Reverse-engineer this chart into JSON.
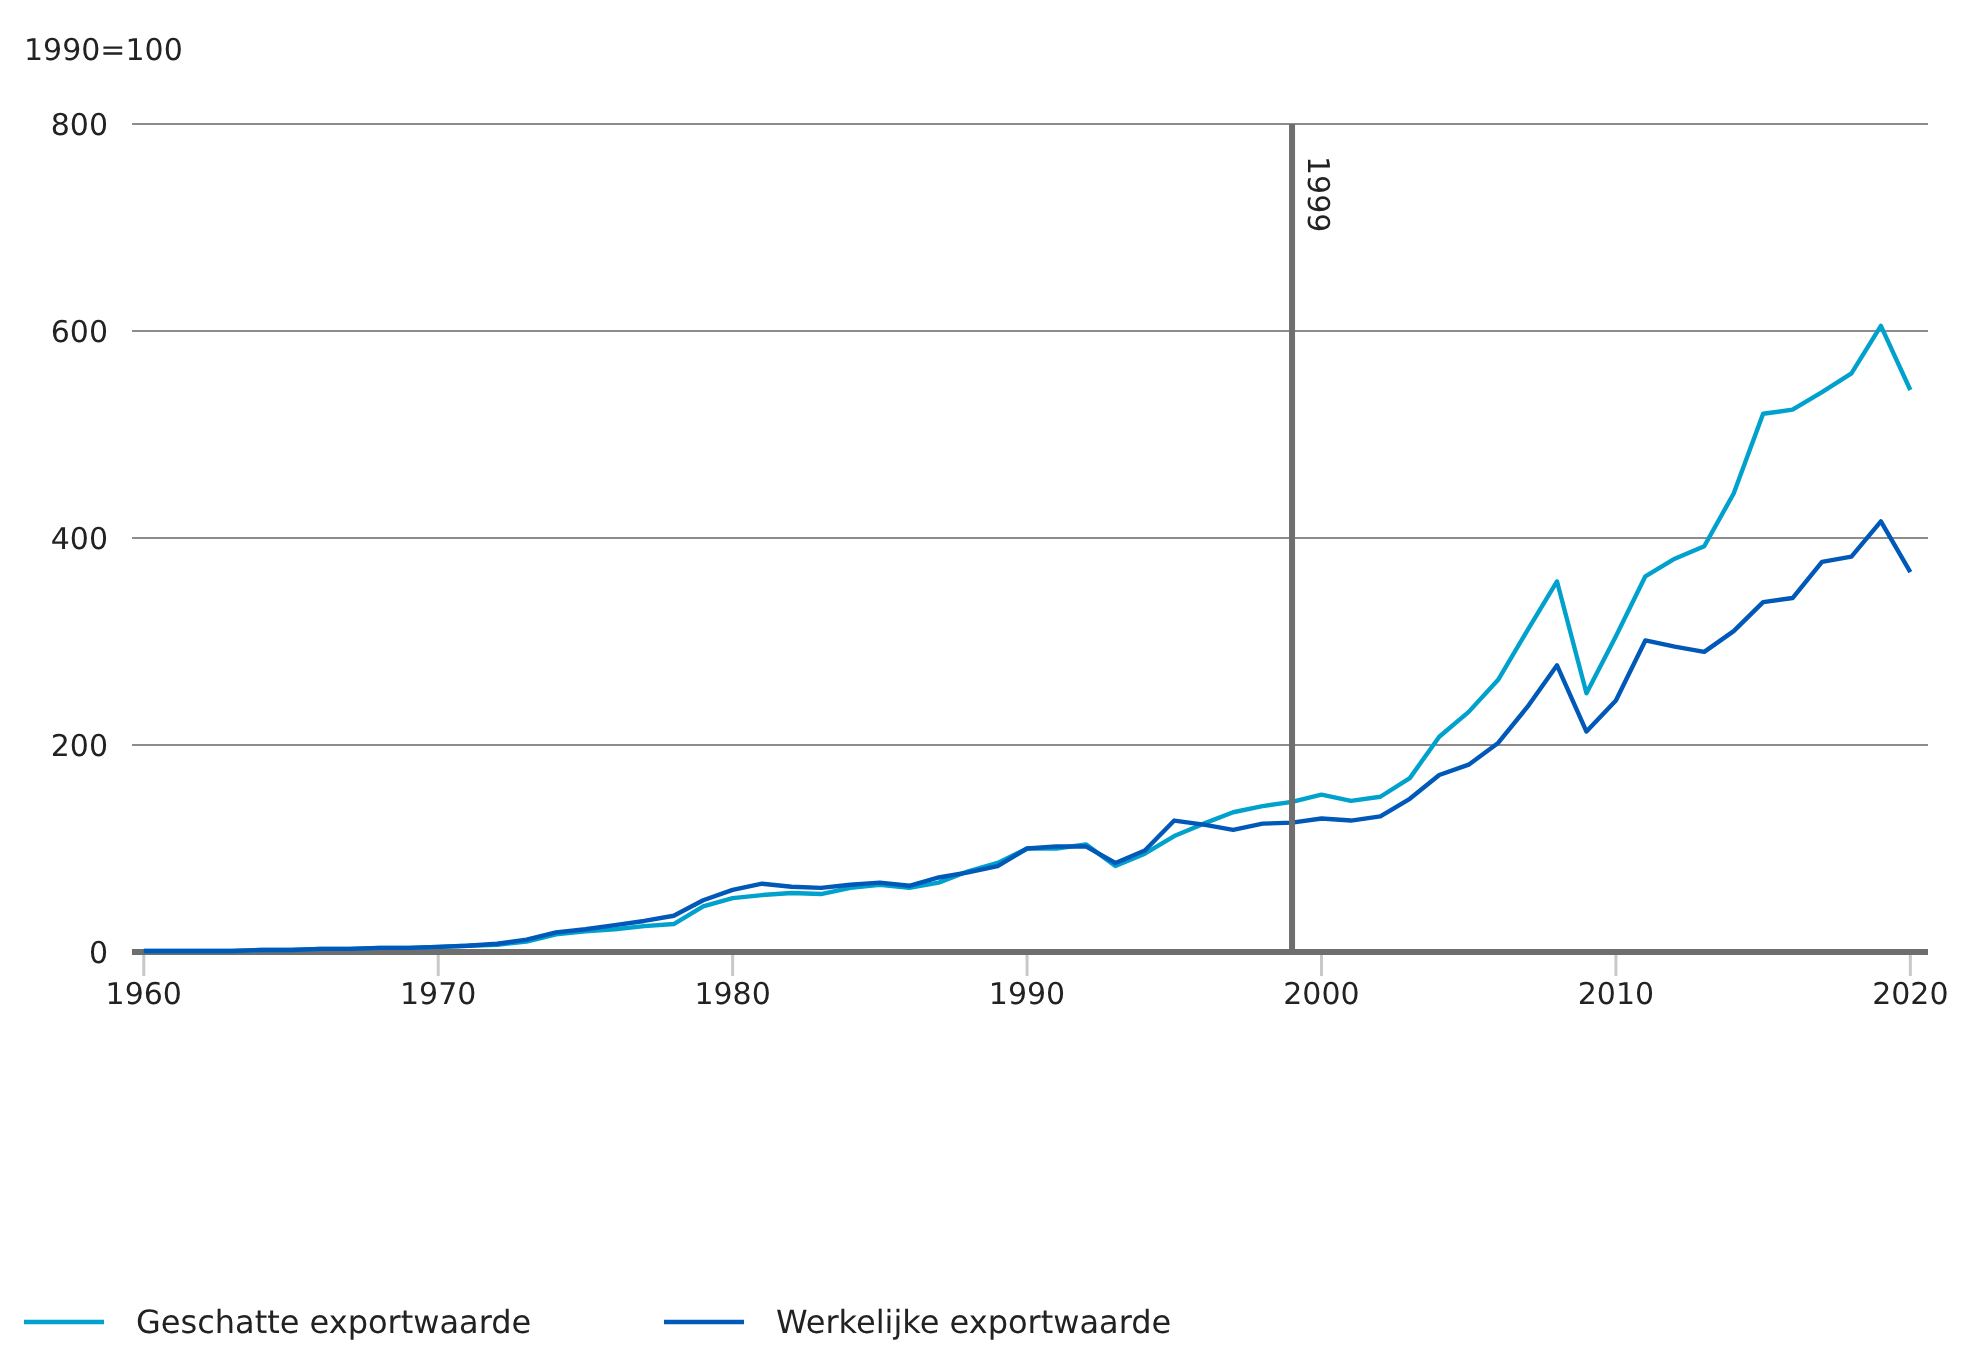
{
  "chart_data": {
    "type": "line",
    "ylabel": "1990=100",
    "x": [
      1960,
      1961,
      1962,
      1963,
      1964,
      1965,
      1966,
      1967,
      1968,
      1969,
      1970,
      1971,
      1972,
      1973,
      1974,
      1975,
      1976,
      1977,
      1978,
      1979,
      1980,
      1981,
      1982,
      1983,
      1984,
      1985,
      1986,
      1987,
      1988,
      1989,
      1990,
      1991,
      1992,
      1993,
      1994,
      1995,
      1996,
      1997,
      1998,
      1999,
      2000,
      2001,
      2002,
      2003,
      2004,
      2005,
      2006,
      2007,
      2008,
      2009,
      2010,
      2011,
      2012,
      2013,
      2014,
      2015,
      2016,
      2017,
      2018,
      2019,
      2020
    ],
    "series": [
      {
        "name": "Geschatte exportwaarde",
        "color": "#00a1cd",
        "values": [
          1,
          1,
          1,
          1,
          2,
          2,
          3,
          3,
          4,
          4,
          5,
          6,
          7,
          10,
          17,
          20,
          22,
          25,
          27,
          44,
          52,
          55,
          57,
          56,
          62,
          65,
          62,
          67,
          78,
          86,
          100,
          100,
          104,
          83,
          95,
          112,
          124,
          135,
          141,
          145,
          152,
          146,
          150,
          168,
          208,
          232,
          263,
          311,
          358,
          250,
          305,
          363,
          380,
          392,
          443,
          520,
          524,
          541,
          559,
          605,
          543
        ]
      },
      {
        "name": "Werkelijke exportwaarde",
        "color": "#0058b8",
        "values": [
          1,
          1,
          1,
          1,
          2,
          2,
          3,
          3,
          4,
          4,
          5,
          6,
          8,
          12,
          19,
          22,
          26,
          30,
          35,
          50,
          60,
          66,
          63,
          62,
          65,
          67,
          64,
          72,
          77,
          83,
          100,
          102,
          102,
          86,
          98,
          127,
          123,
          118,
          124,
          125,
          129,
          127,
          131,
          148,
          171,
          181,
          202,
          237,
          277,
          213,
          243,
          301,
          295,
          290,
          310,
          338,
          342,
          377,
          382,
          416,
          367
        ]
      }
    ],
    "xlim": [
      1959.6,
      2020.6
    ],
    "xticks": [
      1960,
      1970,
      1980,
      1990,
      2000,
      2010,
      2020
    ],
    "ylim": [
      0,
      800
    ],
    "yticks": [
      0,
      200,
      400,
      600,
      800
    ],
    "grid": "y",
    "legend": "bottom",
    "ref_lines": [
      {
        "axis": "x",
        "value": 1999,
        "label": "1999"
      }
    ]
  }
}
